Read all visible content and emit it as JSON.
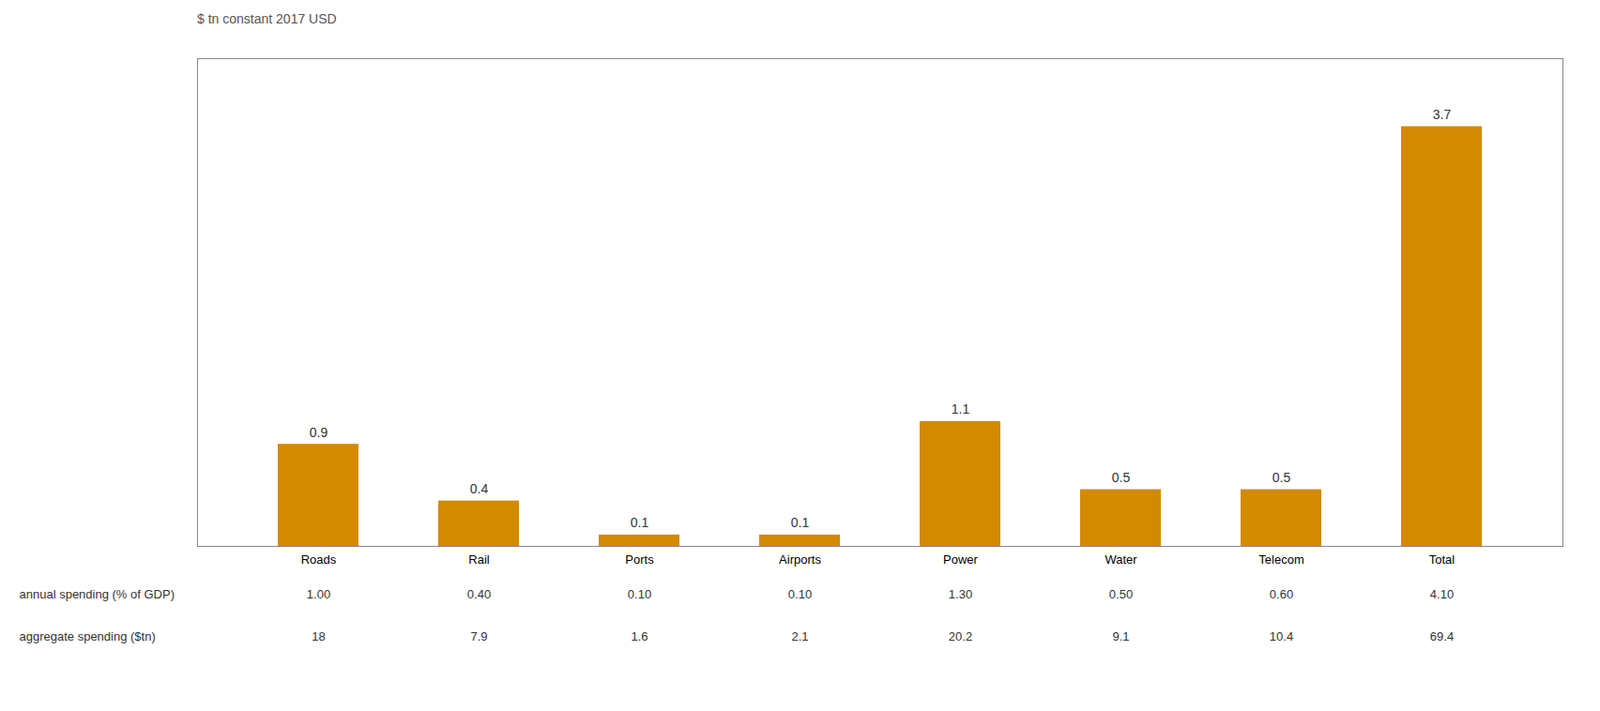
{
  "chart_data": {
    "type": "bar",
    "subtitle": "$ tn constant 2017 USD",
    "categories": [
      "Roads",
      "Rail",
      "Ports",
      "Airports",
      "Power",
      "Water",
      "Telecom",
      "Total"
    ],
    "values": [
      0.9,
      0.4,
      0.1,
      0.1,
      1.1,
      0.5,
      0.5,
      3.7
    ],
    "color": "#D48A00",
    "ylim": [
      0,
      4.3
    ],
    "data_labels": true,
    "tick_labels": "x",
    "grid": false,
    "table": [
      {
        "label": "annual spending (% of GDP)",
        "values": [
          "1.00",
          "0.40",
          "0.10",
          "0.10",
          "1.30",
          "0.50",
          "0.60",
          "4.10"
        ]
      },
      {
        "label": "aggregate spending ($tn)",
        "values": [
          "18",
          "7.9",
          "1.6",
          "2.1",
          "20.2",
          "9.1",
          "10.4",
          "69.4"
        ]
      }
    ]
  }
}
